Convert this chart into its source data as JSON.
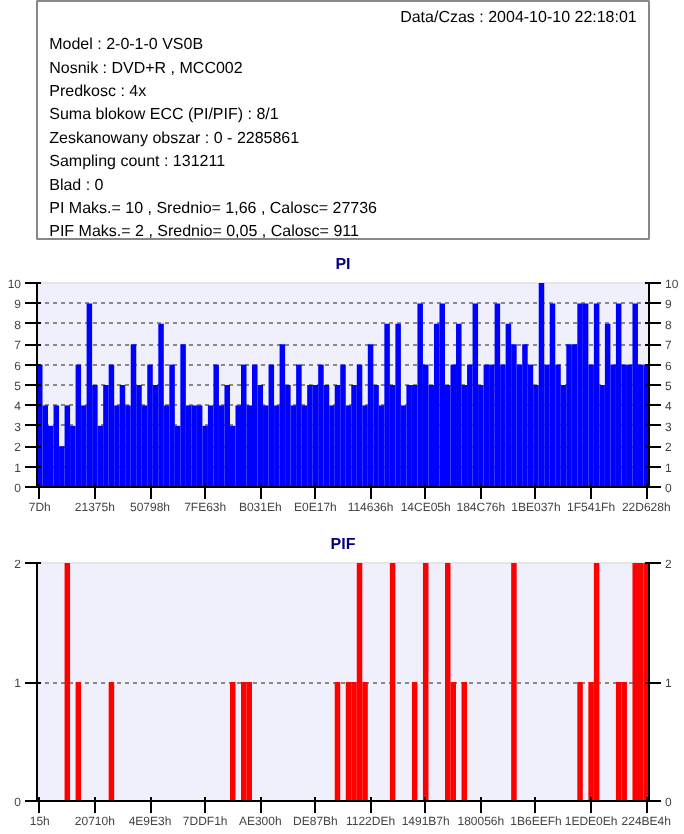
{
  "chart_data": [
    {
      "type": "other",
      "annotations": [
        "Data/Czas : 2004-10-10 22:18:01",
        "Model : 2-0-1-0 VS0B",
        "Nosnik : DVD+R , MCC002",
        "Predkosc : 4x",
        "Suma blokow ECC (PI/PIF) : 8/1",
        "Zeskanowany obszar : 0 - 2285861",
        "Sampling count : 131211",
        "Blad : 0",
        "PI Maks.= 10 , Srednio= 1,66 , Calosc= 27736",
        "PIF Maks.= 2 , Srednio= 0,05 , Calosc= 911"
      ]
    },
    {
      "type": "bar",
      "title": "PI",
      "color": "#0000ff",
      "grid": "y",
      "ylim": [
        0,
        10
      ],
      "yticks": [
        0,
        1,
        2,
        3,
        4,
        5,
        6,
        7,
        8,
        9,
        10
      ],
      "y2lim": [
        0,
        10
      ],
      "y2ticks": [
        0,
        1,
        2,
        3,
        4,
        5,
        6,
        7,
        8,
        9,
        10
      ],
      "categories": [
        "7Dh",
        null,
        null,
        null,
        null,
        null,
        null,
        null,
        null,
        null,
        "21375h",
        null,
        null,
        null,
        null,
        null,
        null,
        null,
        null,
        null,
        "50798h",
        null,
        null,
        null,
        null,
        null,
        null,
        null,
        null,
        null,
        "7FE63h",
        null,
        null,
        null,
        null,
        null,
        null,
        null,
        null,
        null,
        "B031Eh",
        null,
        null,
        null,
        null,
        null,
        null,
        null,
        null,
        null,
        "E0E17h",
        null,
        null,
        null,
        null,
        null,
        null,
        null,
        null,
        null,
        "114636h",
        null,
        null,
        null,
        null,
        null,
        null,
        null,
        null,
        null,
        "14CE05h",
        null,
        null,
        null,
        null,
        null,
        null,
        null,
        null,
        null,
        "184C76h",
        null,
        null,
        null,
        null,
        null,
        null,
        null,
        null,
        null,
        "1BE037h",
        null,
        null,
        null,
        null,
        null,
        null,
        null,
        null,
        null,
        "1F541Fh",
        null,
        null,
        null,
        null,
        null,
        null,
        null,
        null,
        null,
        "22D628h"
      ],
      "values": [
        6,
        4,
        3,
        4,
        2,
        4,
        3,
        6,
        4,
        9,
        5,
        3,
        5,
        6,
        4,
        5,
        4,
        7,
        5,
        4,
        6,
        5,
        8,
        4,
        6,
        3,
        7,
        4,
        4,
        4,
        3,
        4,
        6,
        4,
        5,
        3,
        4,
        6,
        4,
        6,
        5,
        4,
        6,
        4,
        7,
        5,
        4,
        6,
        4,
        5,
        5,
        6,
        5,
        4,
        5,
        6,
        4,
        5,
        6,
        4,
        7,
        5,
        4,
        8,
        5,
        8,
        4,
        5,
        5,
        9,
        6,
        5,
        8,
        9,
        5,
        6,
        8,
        5,
        6,
        9,
        5,
        6,
        6,
        9,
        6,
        8,
        7,
        6,
        7,
        6,
        5,
        10,
        6,
        9,
        6,
        5,
        7,
        7,
        9,
        9,
        6,
        9,
        5,
        8,
        6,
        9,
        6,
        6,
        9,
        6,
        6
      ]
    },
    {
      "type": "bar",
      "title": "PIF",
      "color": "#ff0000",
      "grid": "y",
      "ylim": [
        0,
        2
      ],
      "yticks": [
        0,
        1,
        2
      ],
      "y2lim": [
        0,
        2
      ],
      "y2ticks": [
        0,
        1,
        2
      ],
      "categories": [
        "15h",
        null,
        null,
        null,
        null,
        null,
        null,
        null,
        null,
        null,
        "20710h",
        null,
        null,
        null,
        null,
        null,
        null,
        null,
        null,
        null,
        "4E9E3h",
        null,
        null,
        null,
        null,
        null,
        null,
        null,
        null,
        null,
        "7DDF1h",
        null,
        null,
        null,
        null,
        null,
        null,
        null,
        null,
        null,
        "AE300h",
        null,
        null,
        null,
        null,
        null,
        null,
        null,
        null,
        null,
        "DE87Bh",
        null,
        null,
        null,
        null,
        null,
        null,
        null,
        null,
        null,
        "1122DEh",
        null,
        null,
        null,
        null,
        null,
        null,
        null,
        null,
        null,
        "1491B7h",
        null,
        null,
        null,
        null,
        null,
        null,
        null,
        null,
        null,
        "180056h",
        null,
        null,
        null,
        null,
        null,
        null,
        null,
        null,
        null,
        "1B6EEFh",
        null,
        null,
        null,
        null,
        null,
        null,
        null,
        null,
        null,
        "1EDE0Eh",
        null,
        null,
        null,
        null,
        null,
        null,
        null,
        null,
        null,
        "224BE4h"
      ],
      "values": [
        0,
        0,
        0,
        0,
        0,
        2,
        0,
        1,
        0,
        0,
        0,
        0,
        0,
        1,
        0,
        0,
        0,
        0,
        0,
        0,
        0,
        0,
        0,
        0,
        0,
        0,
        0,
        0,
        0,
        0,
        0,
        0,
        0,
        0,
        0,
        1,
        0,
        1,
        1,
        0,
        0,
        0,
        0,
        0,
        0,
        0,
        0,
        0,
        0,
        0,
        0,
        0,
        0,
        0,
        1,
        0,
        1,
        1,
        2,
        1,
        0,
        0,
        0,
        0,
        2,
        0,
        0,
        0,
        1,
        0,
        2,
        0,
        0,
        0,
        2,
        1,
        0,
        1,
        0,
        0,
        0,
        0,
        0,
        0,
        0,
        0,
        2,
        0,
        0,
        0,
        0,
        0,
        0,
        0,
        0,
        0,
        0,
        0,
        1,
        0,
        1,
        2,
        0,
        0,
        0,
        1,
        1,
        0,
        2,
        2,
        2
      ]
    }
  ]
}
